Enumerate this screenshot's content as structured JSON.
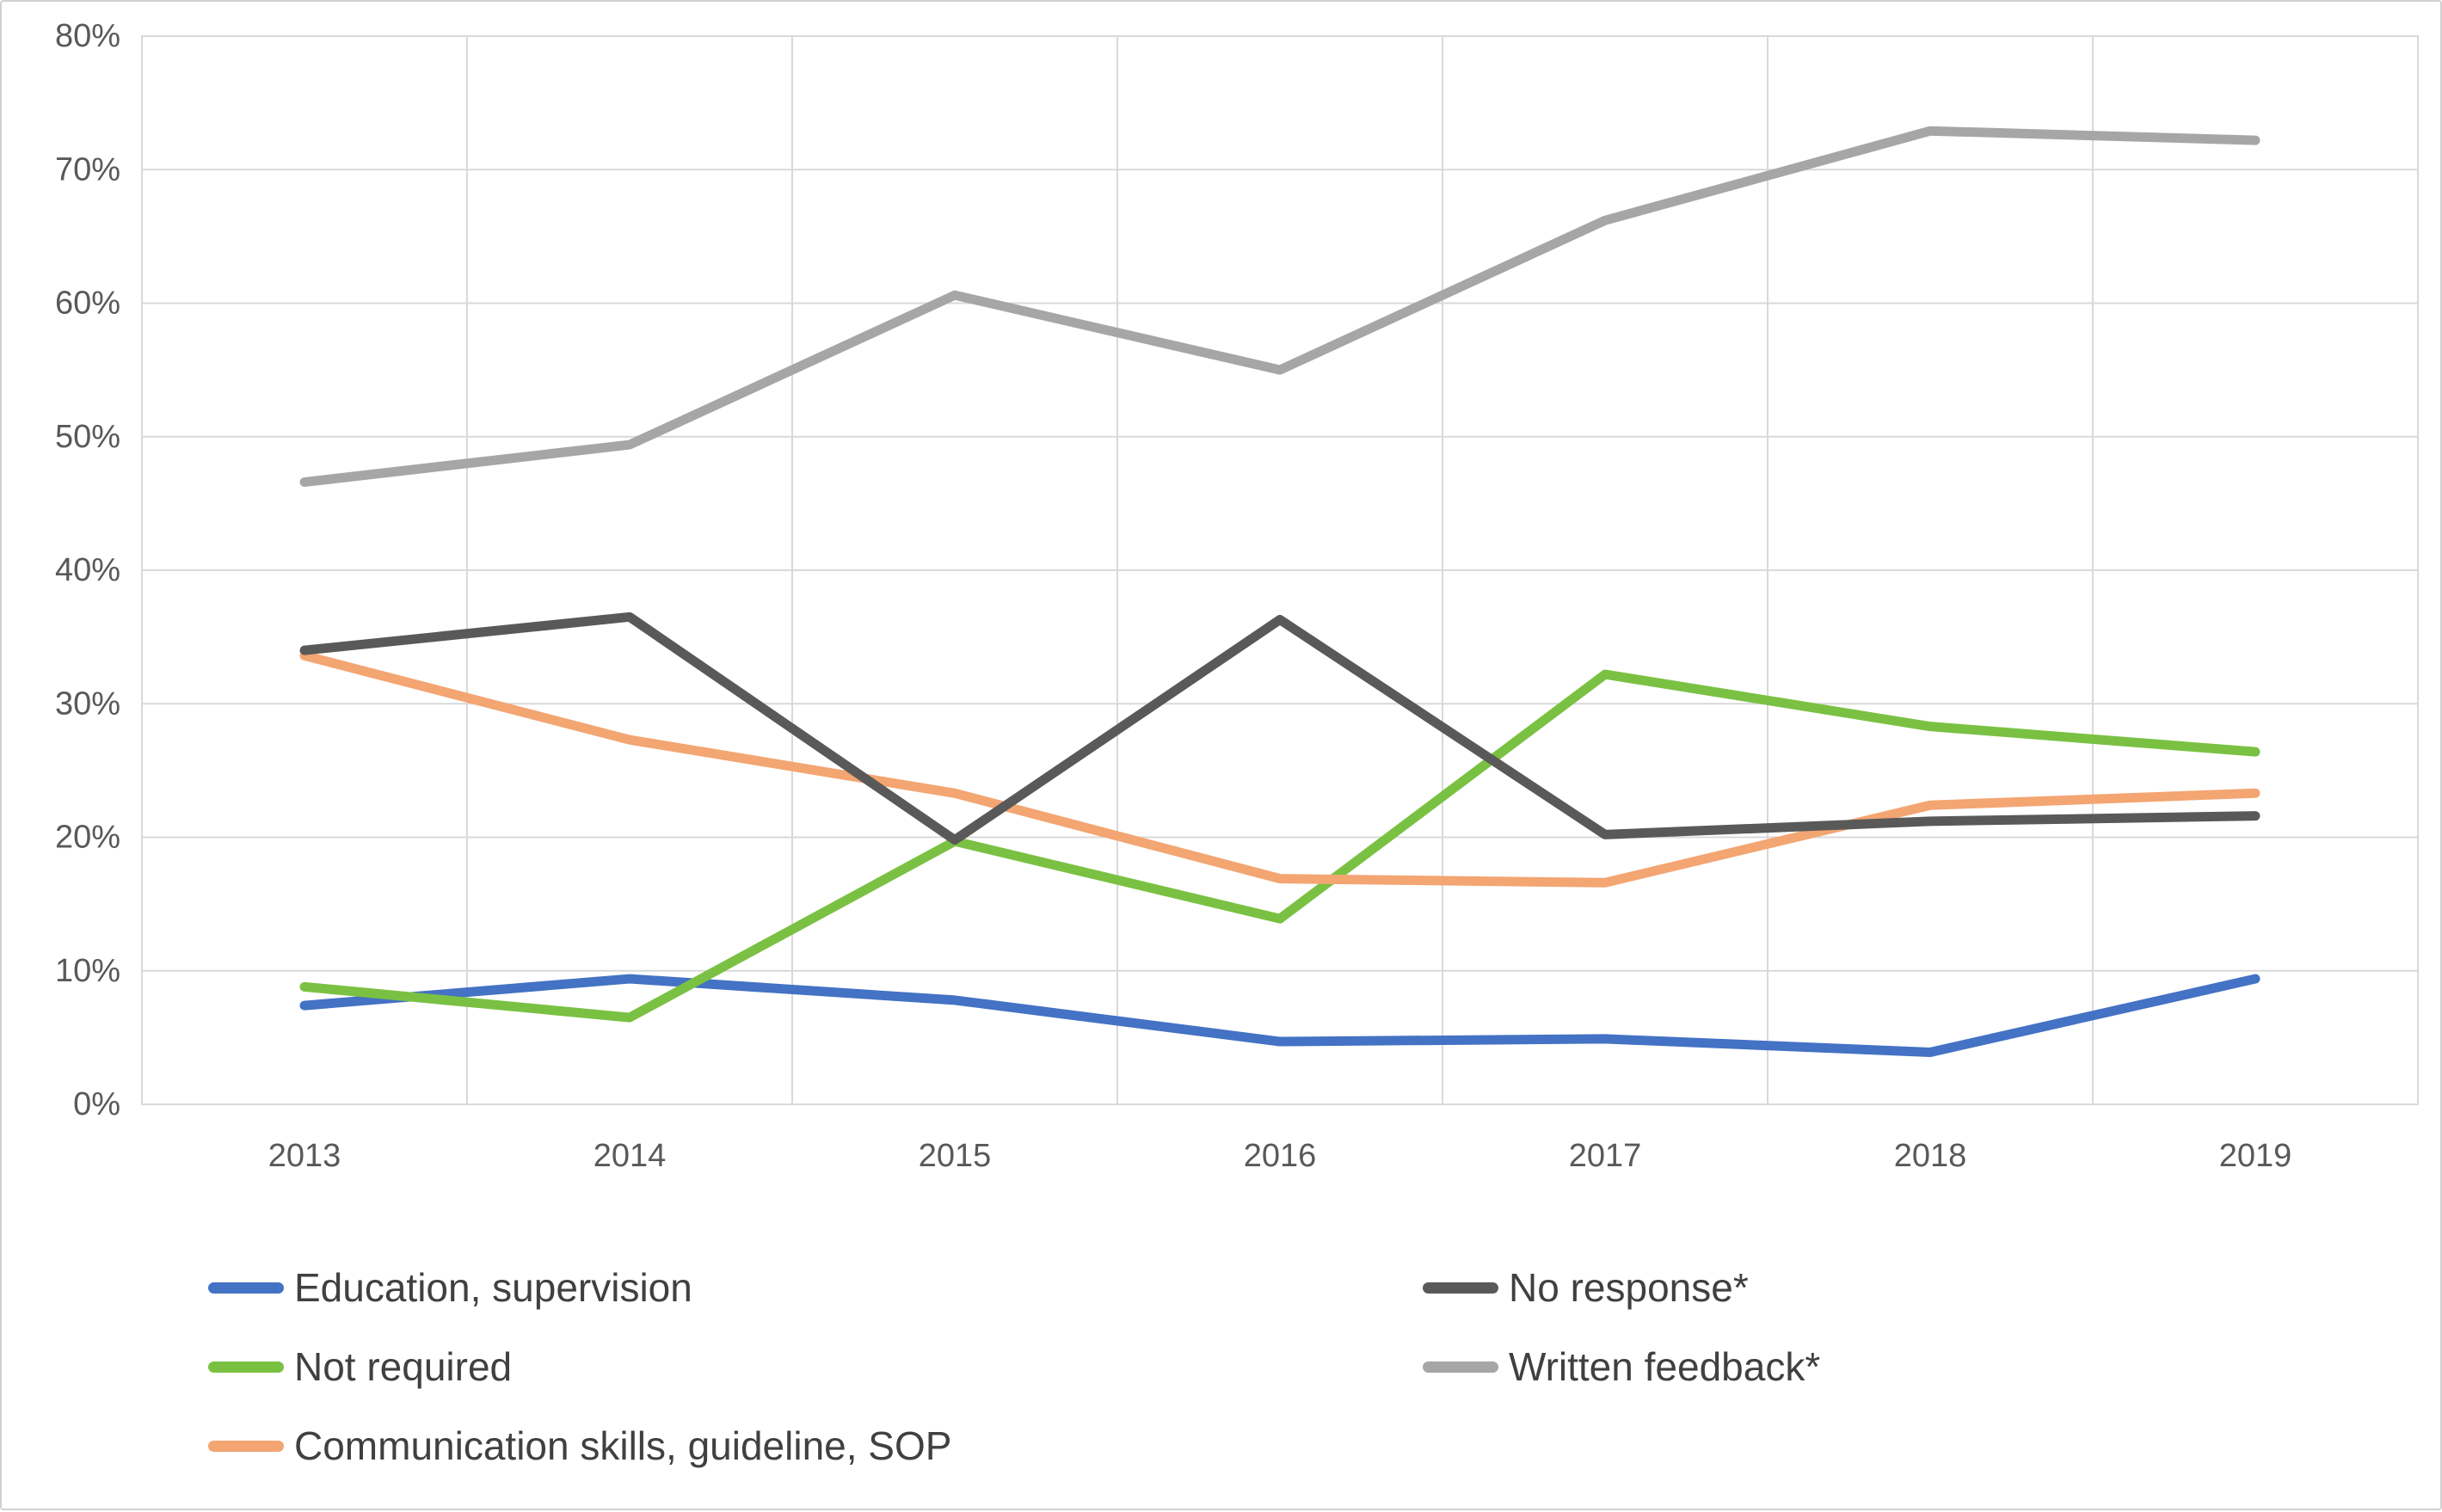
{
  "chart_data": {
    "type": "line",
    "title": "",
    "categories": [
      "2013",
      "2014",
      "2015",
      "2016",
      "2017",
      "2018",
      "2019"
    ],
    "y_ticks": [
      "0%",
      "10%",
      "20%",
      "30%",
      "40%",
      "50%",
      "60%",
      "70%",
      "80%"
    ],
    "ylim": [
      0,
      80
    ],
    "y_tick_step": 10,
    "grid": true,
    "legend_position": "bottom",
    "series": [
      {
        "name": "Education, supervision",
        "color": "#4472C4",
        "values": [
          7.4,
          9.4,
          7.8,
          4.7,
          4.9,
          3.9,
          9.4
        ]
      },
      {
        "name": "Not required",
        "color": "#7AC143",
        "values": [
          8.8,
          6.5,
          19.7,
          13.9,
          32.2,
          28.3,
          26.4
        ]
      },
      {
        "name": "Communication skills, guideline, SOP",
        "color": "#F3A572",
        "values": [
          33.6,
          27.3,
          23.3,
          16.9,
          16.6,
          22.4,
          23.3
        ]
      },
      {
        "name": "No response*",
        "color": "#595959",
        "values": [
          34.0,
          36.5,
          19.8,
          36.3,
          20.2,
          21.2,
          21.6
        ]
      },
      {
        "name": "Written feedback*",
        "color": "#A6A6A6",
        "values": [
          46.6,
          49.4,
          60.6,
          55.0,
          66.2,
          72.9,
          72.2
        ]
      }
    ]
  },
  "colors": {
    "gridline": "#D9D9D9",
    "plot_border": "#D9D9D9",
    "axis_text": "#595959",
    "legend_text": "#404040",
    "background": "#FFFFFF"
  }
}
